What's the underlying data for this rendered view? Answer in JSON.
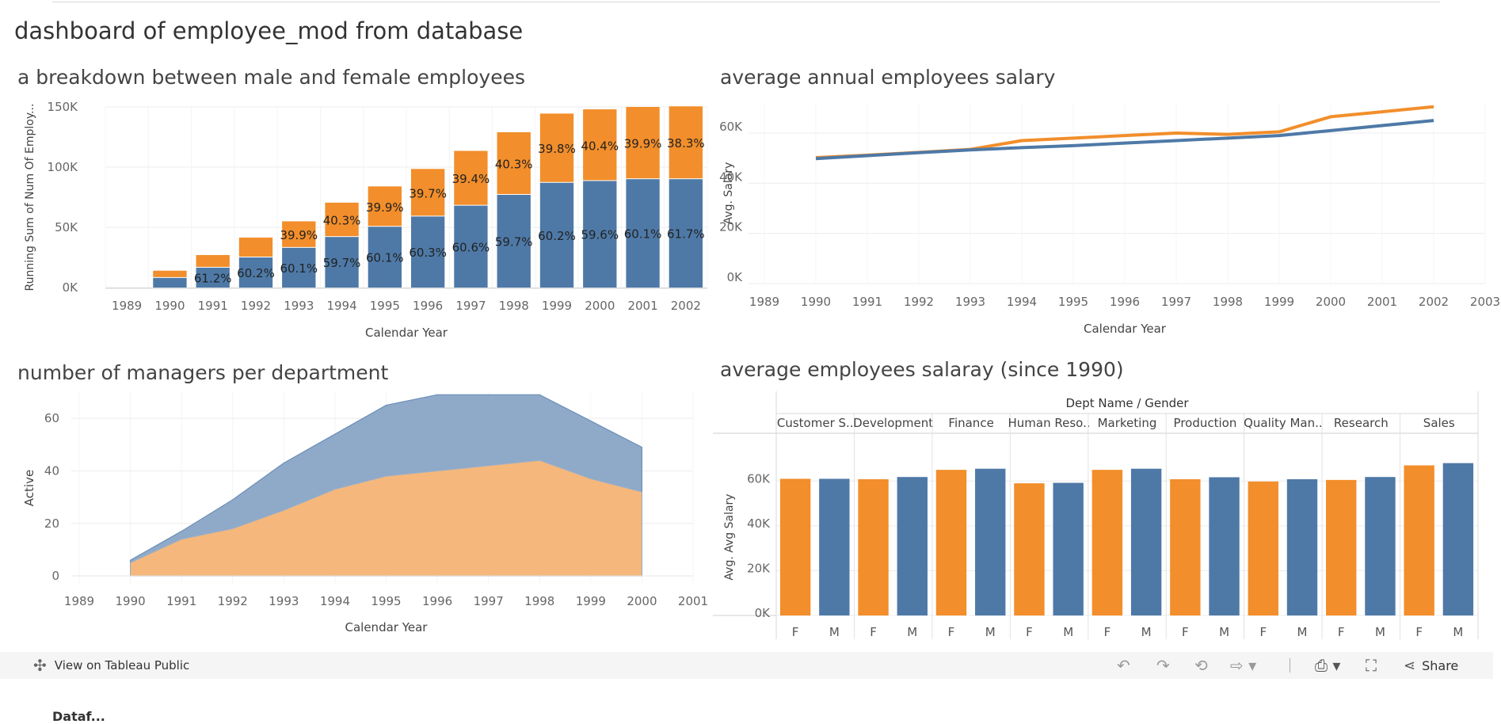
{
  "dashboard": {
    "title": "dashboard of employee_mod from database"
  },
  "colors": {
    "female": "#f28e2b",
    "male": "#4e79a7",
    "grid": "#ececec"
  },
  "chart_data": [
    {
      "id": "gender_breakdown",
      "type": "bar",
      "stacked": true,
      "title": "a breakdown between male and female employees",
      "xlabel": "Calendar Year",
      "ylabel": "Running Sum of Num Of Employ...",
      "x_ticks": [
        "1989",
        "1990",
        "1991",
        "1992",
        "1993",
        "1994",
        "1995",
        "1996",
        "1997",
        "1998",
        "1999",
        "2000",
        "2001",
        "2002"
      ],
      "categories": [
        "1990",
        "1991",
        "1992",
        "1993",
        "1994",
        "1995",
        "1996",
        "1997",
        "1998",
        "1999",
        "2000",
        "2001",
        "2002"
      ],
      "y_ticks": [
        "0K",
        "50K",
        "100K",
        "150K"
      ],
      "ylim": [
        0,
        150000
      ],
      "series": [
        {
          "color": "#4e79a7",
          "values": [
            8000,
            16500,
            25000,
            33000,
            42000,
            50500,
            59000,
            68000,
            77000,
            87000,
            88500,
            90000,
            90000
          ]
        },
        {
          "color": "#f28e2b",
          "values": [
            6000,
            10500,
            16500,
            22000,
            28500,
            33500,
            39500,
            45500,
            52000,
            57500,
            59500,
            60000,
            60500
          ]
        }
      ],
      "labels_bottom": [
        "",
        "61.2%",
        "60.2%",
        "60.1%",
        "59.7%",
        "60.1%",
        "60.3%",
        "60.6%",
        "59.7%",
        "60.2%",
        "59.6%",
        "60.1%",
        "61.7%"
      ],
      "labels_top": [
        "",
        "",
        "",
        "39.9%",
        "40.3%",
        "39.9%",
        "39.7%",
        "39.4%",
        "40.3%",
        "39.8%",
        "40.4%",
        "39.9%",
        "38.3%"
      ]
    },
    {
      "id": "avg_salary_line",
      "type": "line",
      "title": "average annual employees salary",
      "xlabel": "Calendar Year",
      "ylabel": "Avg. Salary",
      "x_ticks": [
        "1989",
        "1990",
        "1991",
        "1992",
        "1993",
        "1994",
        "1995",
        "1996",
        "1997",
        "1998",
        "1999",
        "2000",
        "2001",
        "2002",
        "2003"
      ],
      "x": [
        "1990",
        "1991",
        "1992",
        "1993",
        "1994",
        "1995",
        "1996",
        "1997",
        "1998",
        "1999",
        "2000",
        "2001",
        "2002"
      ],
      "y_ticks": [
        "0K",
        "20K",
        "40K",
        "60K"
      ],
      "ylim": [
        0,
        72000
      ],
      "series": [
        {
          "color": "#f28e2b",
          "values": [
            50200,
            51200,
            52300,
            53500,
            57000,
            58000,
            59000,
            60000,
            59500,
            60500,
            66500,
            68500,
            70500
          ]
        },
        {
          "color": "#4e79a7",
          "values": [
            49800,
            51000,
            52200,
            53300,
            54200,
            55000,
            56000,
            57000,
            58000,
            59000,
            61000,
            63000,
            65000
          ]
        }
      ]
    },
    {
      "id": "managers_area",
      "type": "area",
      "title": "number of managers per department",
      "xlabel": "Calendar Year",
      "ylabel": "Active",
      "x_ticks": [
        "1989",
        "1990",
        "1991",
        "1992",
        "1993",
        "1994",
        "1995",
        "1996",
        "1997",
        "1998",
        "1999",
        "2000",
        "2001"
      ],
      "x": [
        "1990",
        "1991",
        "1992",
        "1993",
        "1994",
        "1995",
        "1996",
        "1997",
        "1998",
        "1999",
        "2000"
      ],
      "y_ticks": [
        "0",
        "20",
        "40",
        "60"
      ],
      "ylim": [
        -3,
        70
      ],
      "series": [
        {
          "color": "#f5b77b",
          "values": [
            5,
            14,
            18,
            25,
            33,
            38,
            40,
            42,
            44,
            37,
            32
          ]
        },
        {
          "color": "#8fa9c9",
          "values": [
            6,
            17,
            29,
            43,
            54,
            65,
            69,
            69,
            69,
            59,
            49
          ]
        }
      ]
    },
    {
      "id": "dept_salary",
      "type": "bar",
      "title": "average employees salaray (since 1990)",
      "header": "Dept Name / Gender",
      "ylabel": "Avg. Avg Salary",
      "y_ticks": [
        "0K",
        "20K",
        "40K",
        "60K"
      ],
      "ylim": [
        0,
        70000
      ],
      "departments": [
        "Customer S..",
        "Development",
        "Finance",
        "Human Reso..",
        "Marketing",
        "Production",
        "Quality Man..",
        "Research",
        "Sales"
      ],
      "genders": [
        "F",
        "M"
      ],
      "values": [
        [
          61000,
          61000
        ],
        [
          60800,
          61800
        ],
        [
          65000,
          65500
        ],
        [
          59000,
          59200
        ],
        [
          65000,
          65500
        ],
        [
          60800,
          61700
        ],
        [
          59800,
          60800
        ],
        [
          60500,
          61800
        ],
        [
          67000,
          68000
        ]
      ]
    }
  ],
  "toolbar": {
    "view_label": "View on Tableau Public",
    "share_label": "Share",
    "icons": [
      "tableau-public-icon",
      "undo-icon",
      "redo-icon",
      "revert-icon",
      "refresh-icon",
      "download-icon",
      "fullscreen-icon",
      "share-icon"
    ]
  },
  "footer": {
    "fragment": "Dataf..."
  }
}
